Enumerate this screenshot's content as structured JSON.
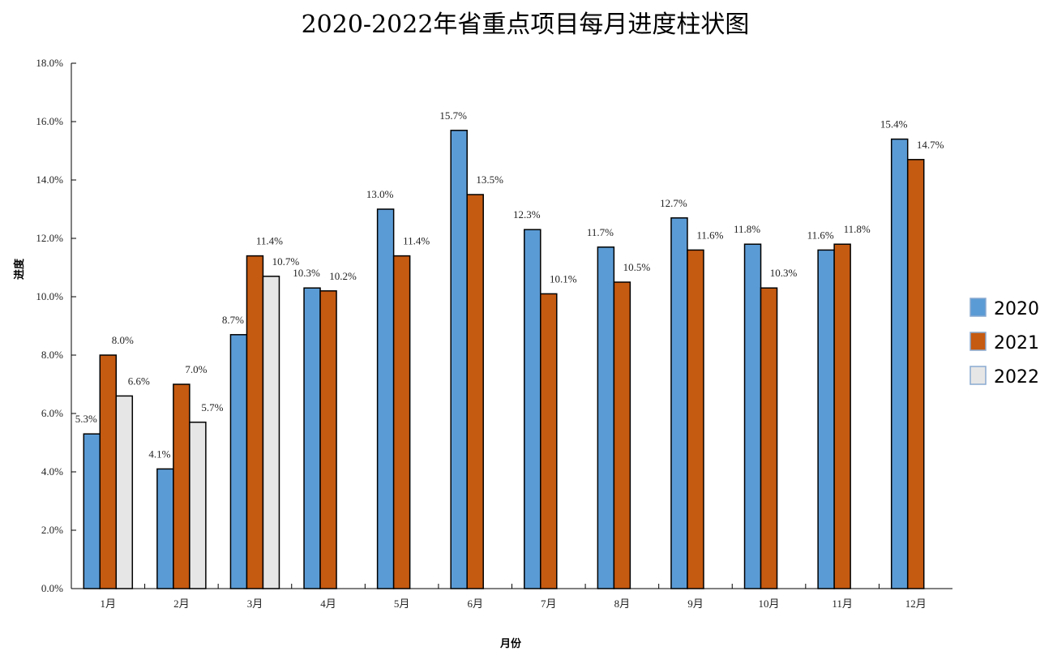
{
  "chart_data": {
    "type": "bar",
    "title": "2020-2022年省重点项目每月进度柱状图",
    "xlabel": "月份",
    "ylabel": "进度",
    "ylim": [
      0,
      18
    ],
    "yticks": [
      "0.0%",
      "2.0%",
      "4.0%",
      "6.0%",
      "8.0%",
      "10.0%",
      "12.0%",
      "14.0%",
      "16.0%",
      "18.0%"
    ],
    "categories": [
      "1月",
      "2月",
      "3月",
      "4月",
      "5月",
      "6月",
      "7月",
      "8月",
      "9月",
      "10月",
      "11月",
      "12月"
    ],
    "series": [
      {
        "name": "2020",
        "color": "#5b9bd5",
        "values": [
          5.3,
          4.1,
          8.7,
          10.3,
          13.0,
          15.7,
          12.3,
          11.7,
          12.7,
          11.8,
          11.6,
          15.4
        ]
      },
      {
        "name": "2021",
        "color": "#c55a11",
        "values": [
          8.0,
          7.0,
          11.4,
          10.2,
          11.4,
          13.5,
          10.1,
          10.5,
          11.6,
          10.3,
          11.8,
          14.7
        ]
      },
      {
        "name": "2022",
        "color": "#e7e6e6",
        "values": [
          6.6,
          5.7,
          10.7,
          null,
          null,
          null,
          null,
          null,
          null,
          null,
          null,
          null
        ]
      }
    ],
    "legend": "right",
    "grid": false
  }
}
